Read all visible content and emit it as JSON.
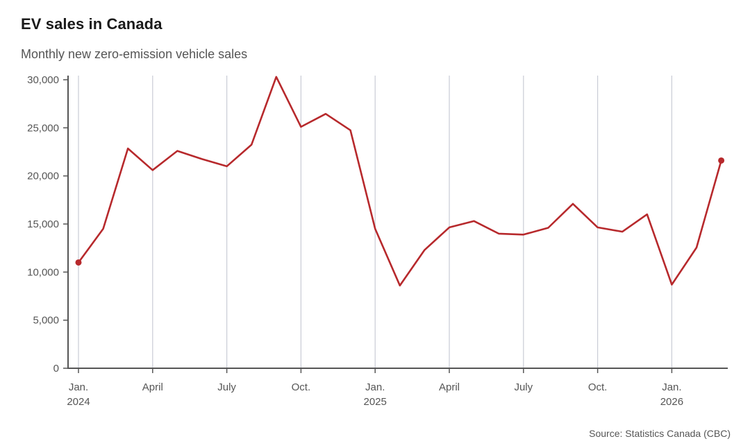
{
  "title": "EV sales in Canada",
  "subtitle": "Monthly new zero-emission vehicle sales",
  "source": "Source: Statistics Canada (CBC)",
  "colors": {
    "line": "#b7292c",
    "grid": "#c9ccd6",
    "axis": "#555555"
  },
  "chart_data": {
    "type": "line",
    "title": "EV sales in Canada",
    "subtitle": "Monthly new zero-emission vehicle sales",
    "ylim": [
      0,
      30000
    ],
    "y_ticks": [
      {
        "value": 0,
        "label": "0"
      },
      {
        "value": 5000,
        "label": "5,000"
      },
      {
        "value": 10000,
        "label": "10,000"
      },
      {
        "value": 15000,
        "label": "15,000"
      },
      {
        "value": 20000,
        "label": "20,000"
      },
      {
        "value": 25000,
        "label": "25,000"
      },
      {
        "value": 30000,
        "label": "30,000"
      }
    ],
    "x_ticks": [
      {
        "month": "2024-01",
        "label": "Jan.",
        "year": "2024"
      },
      {
        "month": "2024-04",
        "label": "April",
        "year": ""
      },
      {
        "month": "2024-07",
        "label": "July",
        "year": ""
      },
      {
        "month": "2024-10",
        "label": "Oct.",
        "year": ""
      },
      {
        "month": "2025-01",
        "label": "Jan.",
        "year": "2025"
      },
      {
        "month": "2025-04",
        "label": "April",
        "year": ""
      },
      {
        "month": "2025-07",
        "label": "July",
        "year": ""
      },
      {
        "month": "2025-10",
        "label": "Oct.",
        "year": ""
      },
      {
        "month": "2026-01",
        "label": "Jan.",
        "year": "2026"
      }
    ],
    "grid": "vertical",
    "series": [
      {
        "x": [
          "2024-01",
          "2024-02",
          "2024-03",
          "2024-04",
          "2024-05",
          "2024-06",
          "2024-07",
          "2024-08",
          "2024-09",
          "2024-10",
          "2024-11",
          "2024-12",
          "2025-01",
          "2025-02",
          "2025-03",
          "2025-04",
          "2025-05",
          "2025-06",
          "2025-07",
          "2025-08",
          "2025-09",
          "2025-10",
          "2025-11",
          "2025-12",
          "2026-01",
          "2026-02",
          "2026-03"
        ],
        "values": [
          11000,
          14500,
          22850,
          20600,
          22600,
          21750,
          21000,
          23250,
          30300,
          25100,
          26450,
          24750,
          14500,
          8600,
          12300,
          14650,
          15300,
          14000,
          13900,
          14600,
          17100,
          14650,
          14200,
          16000,
          8700,
          12550,
          21600
        ],
        "markers": [
          0,
          26
        ]
      }
    ]
  }
}
